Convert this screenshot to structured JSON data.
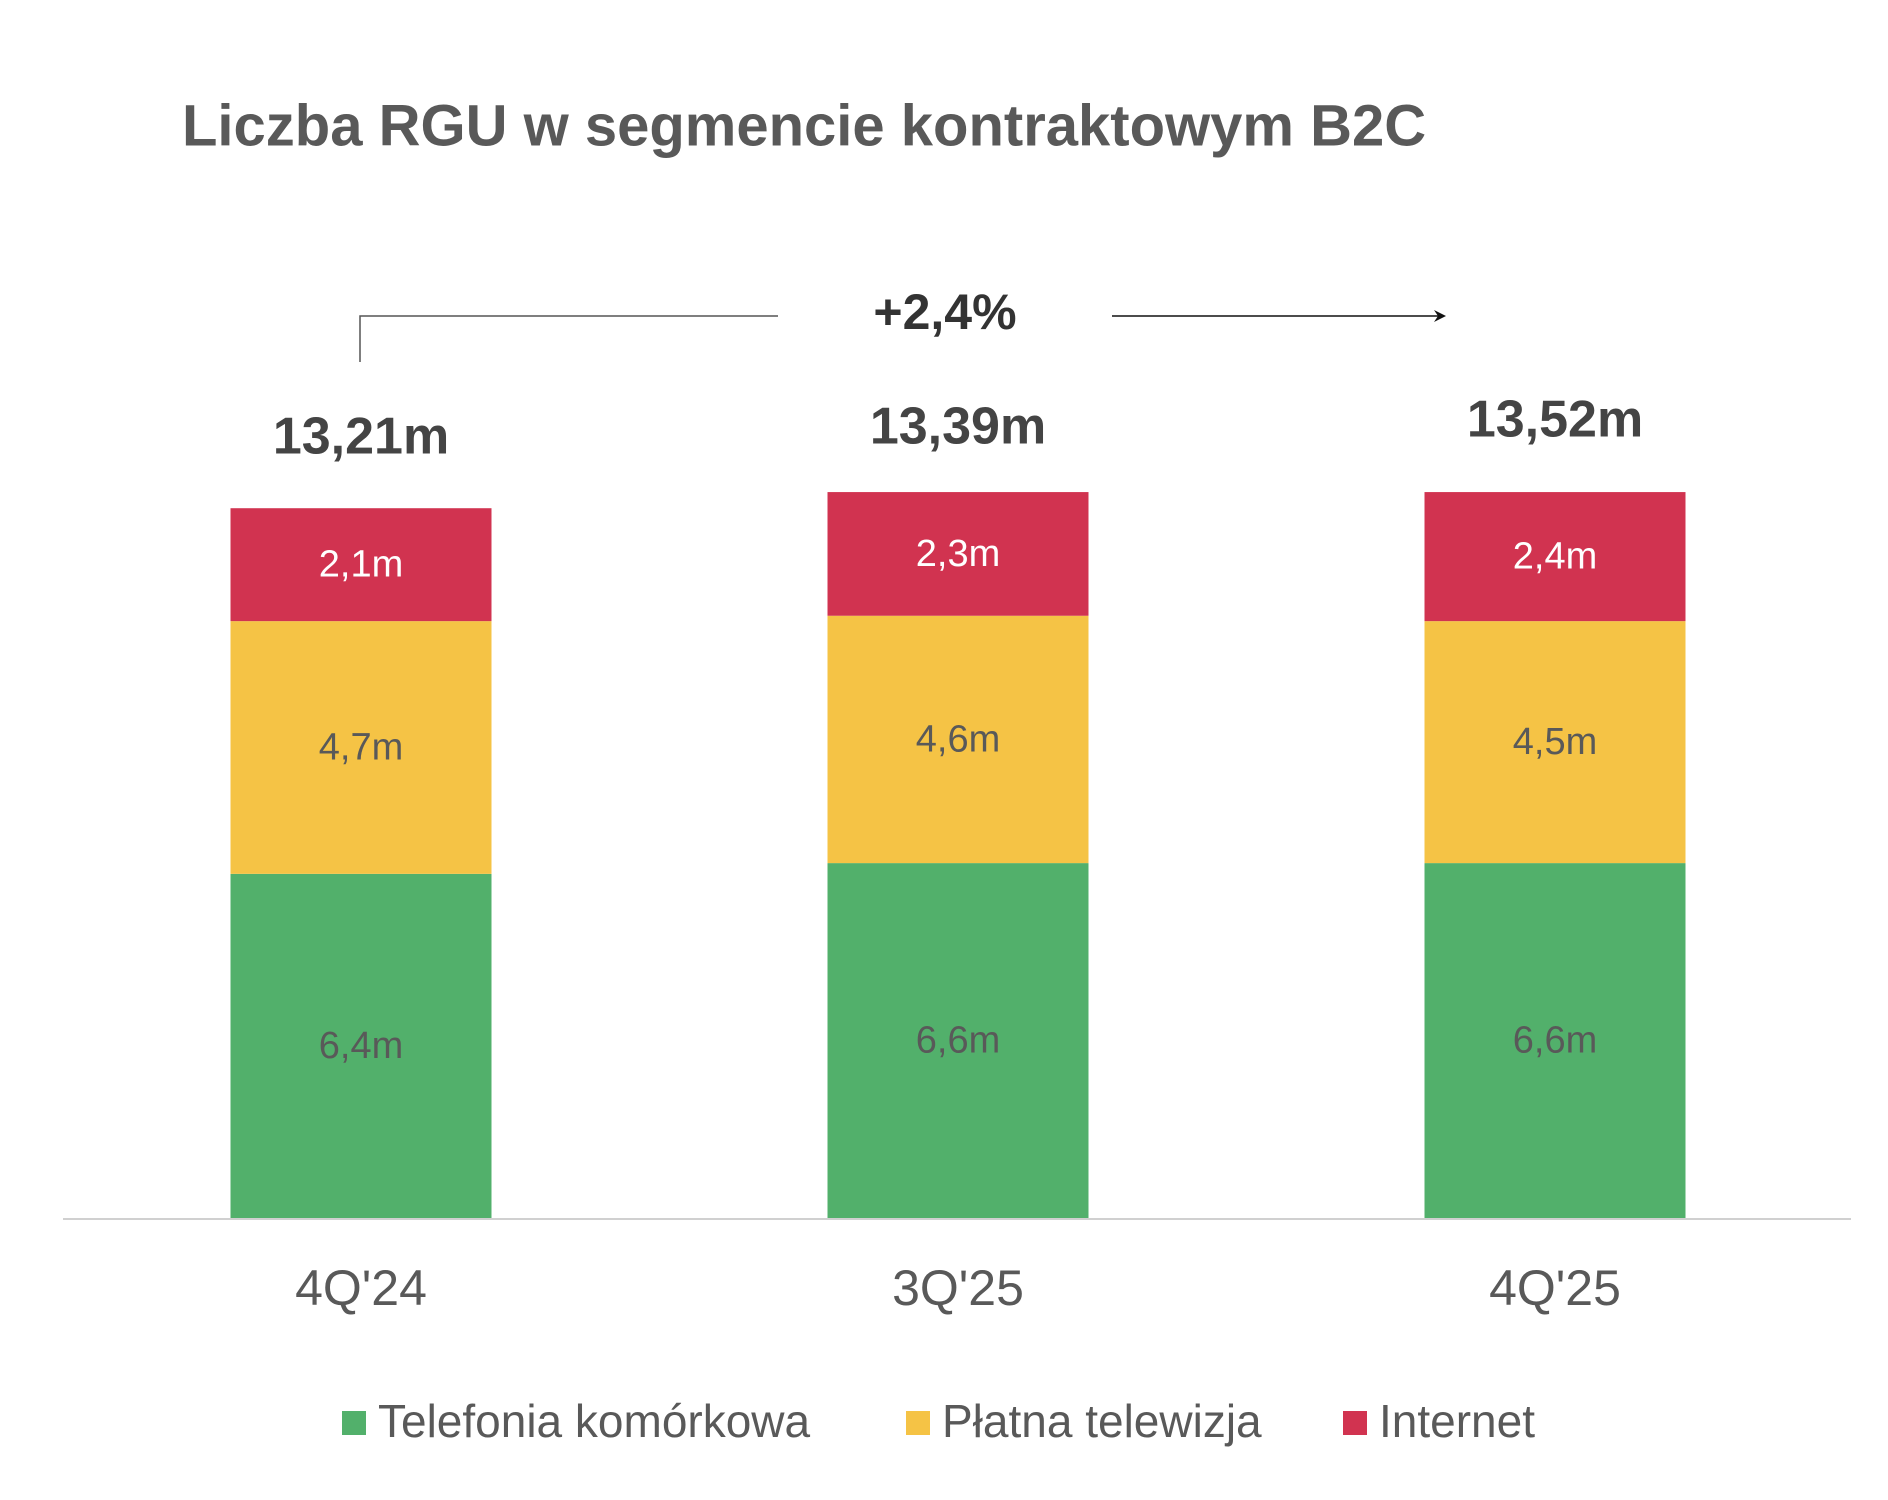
{
  "chart_data": {
    "type": "stacked_bar",
    "title": "Liczba RGU w segmencie kontraktowym B2C",
    "annotation": "+2,4%",
    "categories": [
      "4Q'24",
      "3Q'25",
      "4Q'25"
    ],
    "totals": [
      13.21,
      13.39,
      13.52
    ],
    "total_labels": [
      "13,21m",
      "13,39m",
      "13,52m"
    ],
    "series": [
      {
        "name": "Telefonia komórkowa",
        "color": "#52b06b",
        "values": [
          6.4,
          6.6,
          6.6
        ],
        "value_labels": [
          "6,4m",
          "6,6m",
          "6,6m"
        ]
      },
      {
        "name": "Płatna telewizja",
        "color": "#f5c345",
        "values": [
          4.7,
          4.6,
          4.5
        ],
        "value_labels": [
          "4,7m",
          "4,6m",
          "4,5m"
        ]
      },
      {
        "name": "Internet",
        "color": "#d13350",
        "values": [
          2.1,
          2.3,
          2.4
        ],
        "value_labels": [
          "2,1m",
          "2,3m",
          "2,4m"
        ]
      }
    ]
  }
}
